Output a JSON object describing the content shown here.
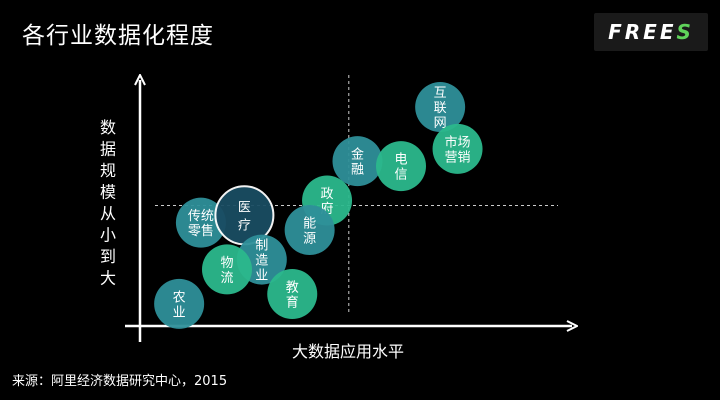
{
  "title": "各行业数据化程度",
  "logo": {
    "prefix": "FREE",
    "accent_letter": "S"
  },
  "source": "来源：阿里经济数据研究中心，2015",
  "chart_data": {
    "type": "scatter",
    "title": "各行业数据化程度",
    "xlabel": "大数据应用水平",
    "ylabel": "数据规模从小到大",
    "xlim": [
      0,
      100
    ],
    "ylim": [
      0,
      100
    ],
    "quadrant_lines": {
      "x": 48,
      "y": 49
    },
    "grid": false,
    "colors": {
      "teal": "#2e8f99",
      "green": "#2bb88c",
      "dark": "#1a4d63",
      "outline": "#ffffff"
    },
    "points": [
      {
        "name": "互联网",
        "lines": [
          "互",
          "联",
          "网"
        ],
        "x": 69,
        "y": 89,
        "color": "#2e8f99"
      },
      {
        "name": "市场营销",
        "lines": [
          "市场",
          "营销"
        ],
        "x": 73,
        "y": 72,
        "color": "#2bb88c"
      },
      {
        "name": "金融",
        "lines": [
          "金",
          "融"
        ],
        "x": 50,
        "y": 67,
        "color": "#2e8f99"
      },
      {
        "name": "电信",
        "lines": [
          "电",
          "信"
        ],
        "x": 60,
        "y": 65,
        "color": "#2bb88c"
      },
      {
        "name": "政府",
        "lines": [
          "政",
          "府"
        ],
        "x": 43,
        "y": 51,
        "color": "#2bb88c"
      },
      {
        "name": "能源",
        "lines": [
          "能",
          "源"
        ],
        "x": 39,
        "y": 39,
        "color": "#2e8f99"
      },
      {
        "name": "传统零售",
        "lines": [
          "传统",
          "零售"
        ],
        "x": 14,
        "y": 42,
        "color": "#2e8f99"
      },
      {
        "name": "医疗",
        "lines": [
          "医",
          "疗"
        ],
        "x": 24,
        "y": 45,
        "color": "#1a4d63",
        "outline": true
      },
      {
        "name": "制造业",
        "lines": [
          "制",
          "造",
          "业"
        ],
        "x": 28,
        "y": 27,
        "color": "#2e8f99"
      },
      {
        "name": "物流",
        "lines": [
          "物",
          "流"
        ],
        "x": 20,
        "y": 23,
        "color": "#2bb88c"
      },
      {
        "name": "教育",
        "lines": [
          "教",
          "育"
        ],
        "x": 35,
        "y": 13,
        "color": "#2bb88c"
      },
      {
        "name": "农业",
        "lines": [
          "农",
          "业"
        ],
        "x": 9,
        "y": 9,
        "color": "#2e8f99"
      }
    ]
  }
}
